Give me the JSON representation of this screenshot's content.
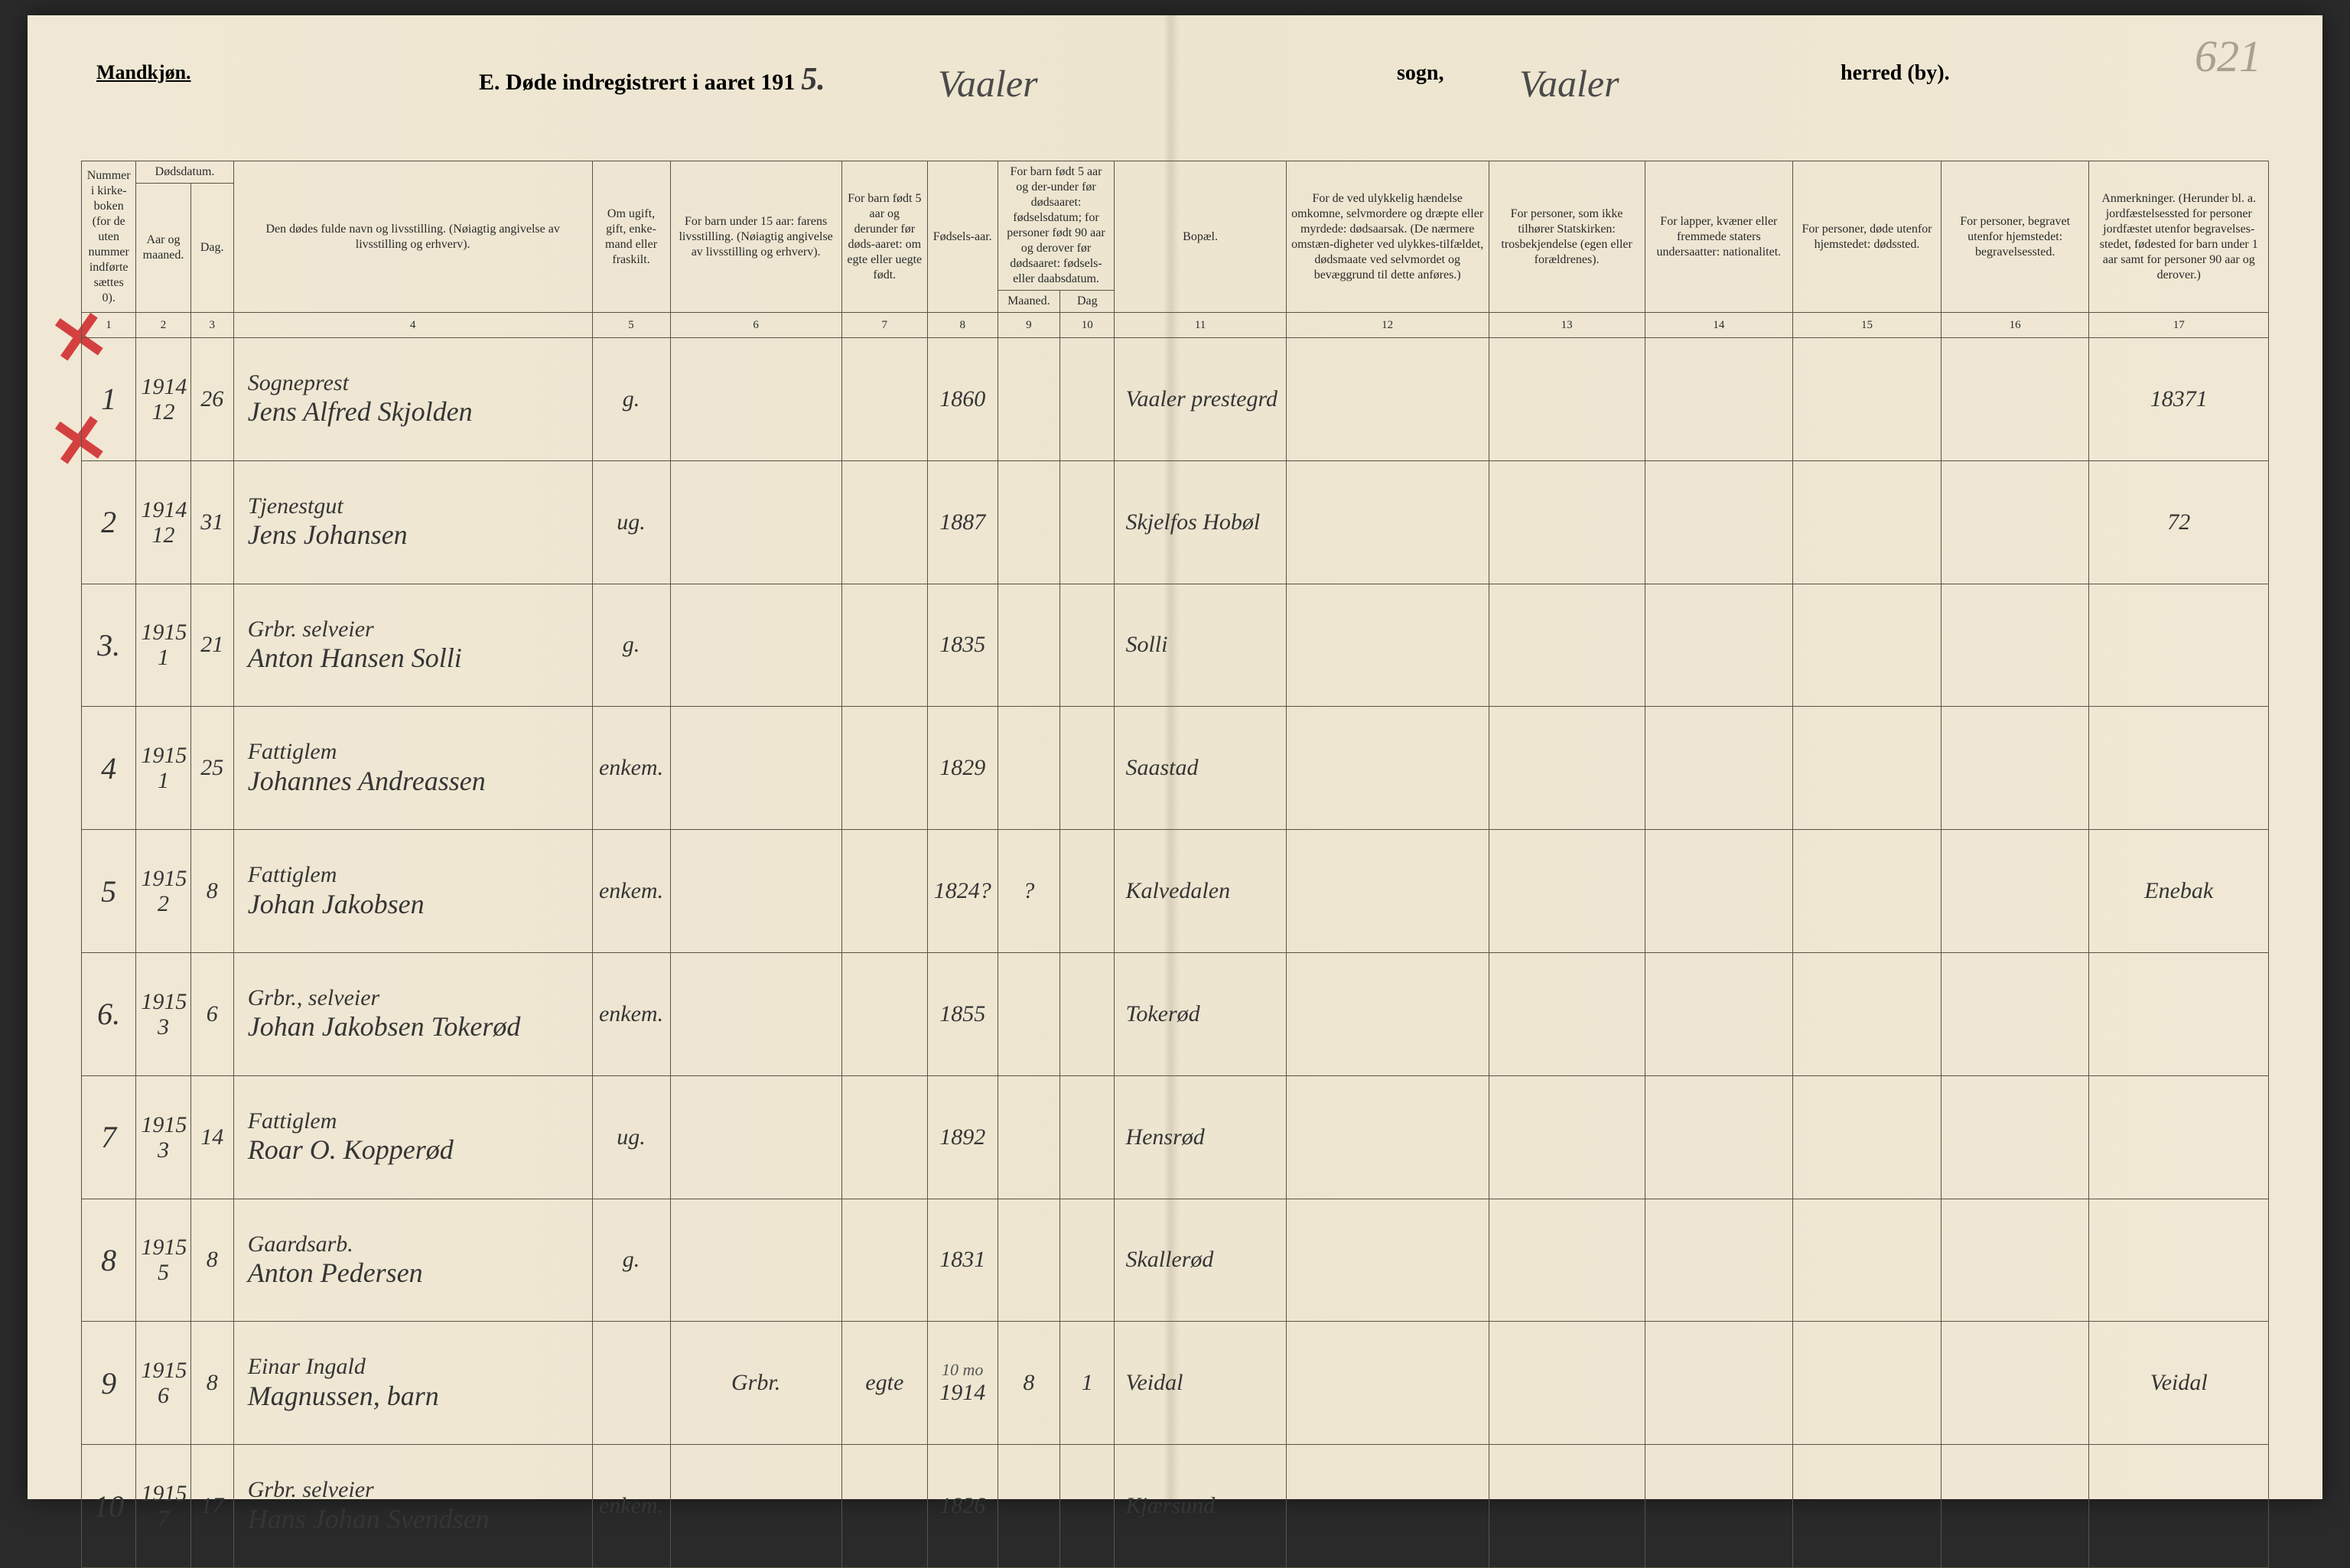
{
  "page_number_top_right": "621",
  "header": {
    "left_label": "Mandkjøn.",
    "title_prefix": "E.  Døde indregistrert i aaret 191",
    "year_suffix": "5.",
    "parish_value": "Vaaler",
    "sogn_label": "sogn,",
    "herred_value": "Vaaler",
    "herred_label": "herred (by)."
  },
  "columns": [
    {
      "num": "1",
      "label": "Nummer i kirke-boken (for de uten nummer indførte sættes 0)."
    },
    {
      "num": "2",
      "label": "Aar og maaned."
    },
    {
      "num": "3",
      "label": "Dag."
    },
    {
      "num": "",
      "label": "Dødsdatum.",
      "span_over": "2-3"
    },
    {
      "num": "4",
      "label": "Den dødes fulde navn og livsstilling. (Nøiagtig angivelse av livsstilling og erhverv)."
    },
    {
      "num": "5",
      "label": "Om ugift, gift, enke-mand eller fraskilt."
    },
    {
      "num": "6",
      "label": "For barn under 15 aar: farens livsstilling. (Nøiagtig angivelse av livsstilling og erhverv)."
    },
    {
      "num": "7",
      "label": "For barn født 5 aar og derunder før døds-aaret: om egte eller uegte født."
    },
    {
      "num": "8",
      "label": "Fødsels-aar."
    },
    {
      "num": "9",
      "label": "Maaned."
    },
    {
      "num": "10",
      "label": "Dag"
    },
    {
      "num": "",
      "label": "For barn født 5 aar og der-under før dødsaaret: fødselsdatum; for personer født 90 aar og derover før dødsaaret: fødsels- eller daabsdatum.",
      "span_over": "9-10"
    },
    {
      "num": "11",
      "label": "Bopæl."
    },
    {
      "num": "12",
      "label": "For de ved ulykkelig hændelse omkomne, selvmordere og dræpte eller myrdede: dødsaarsak. (De nærmere omstæn-digheter ved ulykkes-tilfældet, dødsmaate ved selvmordet og bevæggrund til dette anføres.)"
    },
    {
      "num": "13",
      "label": "For personer, som ikke tilhører Statskirken: trosbekjendelse (egen eller forældrenes)."
    },
    {
      "num": "14",
      "label": "For lapper, kvæner eller fremmede staters undersaatter: nationalitet."
    },
    {
      "num": "15",
      "label": "For personer, døde utenfor hjemstedet: dødssted."
    },
    {
      "num": "16",
      "label": "For personer, begravet utenfor hjemstedet: begravelsessted."
    },
    {
      "num": "17",
      "label": "Anmerkninger. (Herunder bl. a. jordfæstelsessted for personer jordfæstet utenfor begravelses-stedet, fødested for barn under 1 aar samt for personer 90 aar og derover.)"
    }
  ],
  "rows": [
    {
      "n": "1",
      "yr": "1914",
      "mo": "12",
      "dag": "26",
      "occ": "Sogneprest",
      "name": "Jens Alfred Skjolden",
      "status": "g.",
      "father": "",
      "egte": "",
      "byear": "1860",
      "bm": "",
      "bd": "",
      "residence": "Vaaler prestegrd",
      "c12": "",
      "c13": "",
      "c14": "",
      "c15": "",
      "c16": "",
      "notes": "18371",
      "red_x": true
    },
    {
      "n": "2",
      "yr": "1914",
      "mo": "12",
      "dag": "31",
      "occ": "Tjenestgut",
      "name": "Jens Johansen",
      "status": "ug.",
      "father": "",
      "egte": "",
      "byear": "1887",
      "bm": "",
      "bd": "",
      "residence": "Skjelfos Hobøl",
      "c12": "",
      "c13": "",
      "c14": "",
      "c15": "",
      "c16": "",
      "notes": "72",
      "red_x": true
    },
    {
      "n": "3.",
      "yr": "1915",
      "mo": "1",
      "dag": "21",
      "occ": "Grbr. selveier",
      "name": "Anton Hansen Solli",
      "status": "g.",
      "father": "",
      "egte": "",
      "byear": "1835",
      "bm": "",
      "bd": "",
      "residence": "Solli",
      "c12": "",
      "c13": "",
      "c14": "",
      "c15": "",
      "c16": "",
      "notes": ""
    },
    {
      "n": "4",
      "yr": "1915",
      "mo": "1",
      "dag": "25",
      "occ": "Fattiglem",
      "name": "Johannes Andreassen",
      "status": "enkem.",
      "father": "",
      "egte": "",
      "byear": "1829",
      "bm": "",
      "bd": "",
      "residence": "Saastad",
      "c12": "",
      "c13": "",
      "c14": "",
      "c15": "",
      "c16": "",
      "notes": ""
    },
    {
      "n": "5",
      "yr": "1915",
      "mo": "2",
      "dag": "8",
      "occ": "Fattiglem",
      "name": "Johan Jakobsen",
      "status": "enkem.",
      "father": "",
      "egte": "",
      "byear": "1824?",
      "bm": "?",
      "bd": "",
      "residence": "Kalvedalen",
      "c12": "",
      "c13": "",
      "c14": "",
      "c15": "",
      "c16": "",
      "notes": "Enebak"
    },
    {
      "n": "6.",
      "yr": "1915",
      "mo": "3",
      "dag": "6",
      "occ": "Grbr., selveier",
      "name": "Johan Jakobsen Tokerød",
      "status": "enkem.",
      "father": "",
      "egte": "",
      "byear": "1855",
      "bm": "",
      "bd": "",
      "residence": "Tokerød",
      "c12": "",
      "c13": "",
      "c14": "",
      "c15": "",
      "c16": "",
      "notes": ""
    },
    {
      "n": "7",
      "yr": "1915",
      "mo": "3",
      "dag": "14",
      "occ": "Fattiglem",
      "name": "Roar O. Kopperød",
      "status": "ug.",
      "father": "",
      "egte": "",
      "byear": "1892",
      "bm": "",
      "bd": "",
      "residence": "Hensrød",
      "c12": "",
      "c13": "",
      "c14": "",
      "c15": "",
      "c16": "",
      "notes": ""
    },
    {
      "n": "8",
      "yr": "1915",
      "mo": "5",
      "dag": "8",
      "occ": "Gaardsarb.",
      "name": "Anton Pedersen",
      "status": "g.",
      "father": "",
      "egte": "",
      "byear": "1831",
      "bm": "",
      "bd": "",
      "residence": "Skallerød",
      "c12": "",
      "c13": "",
      "c14": "",
      "c15": "",
      "c16": "",
      "notes": ""
    },
    {
      "n": "9",
      "yr": "1915",
      "mo": "6",
      "dag": "8",
      "occ": "Einar Ingald",
      "name": "Magnussen, barn",
      "status": "",
      "father": "Grbr.",
      "egte": "egte",
      "byear": "1914",
      "byear_top": "10 mo",
      "bm": "8",
      "bd": "1",
      "residence": "Veidal",
      "c12": "",
      "c13": "",
      "c14": "",
      "c15": "",
      "c16": "",
      "notes": "Veidal"
    },
    {
      "n": "10",
      "yr": "1915",
      "mo": "7",
      "dag": "17",
      "occ": "Grbr. selveier",
      "name": "Hans Johan Svendsen",
      "status": "enkem.",
      "father": "",
      "egte": "",
      "byear": "1826",
      "bm": "",
      "bd": "",
      "residence": "Kjærsund",
      "c12": "",
      "c13": "",
      "c14": "",
      "c15": "",
      "c16": "",
      "notes": ""
    }
  ],
  "style": {
    "paper_bg": "#f0e8d4",
    "fold_shadow": "#d8d0b8",
    "border_color": "#5a5244",
    "header_print_size": 28,
    "cursive_color": "#353535",
    "red_x_color": "#d44040"
  }
}
